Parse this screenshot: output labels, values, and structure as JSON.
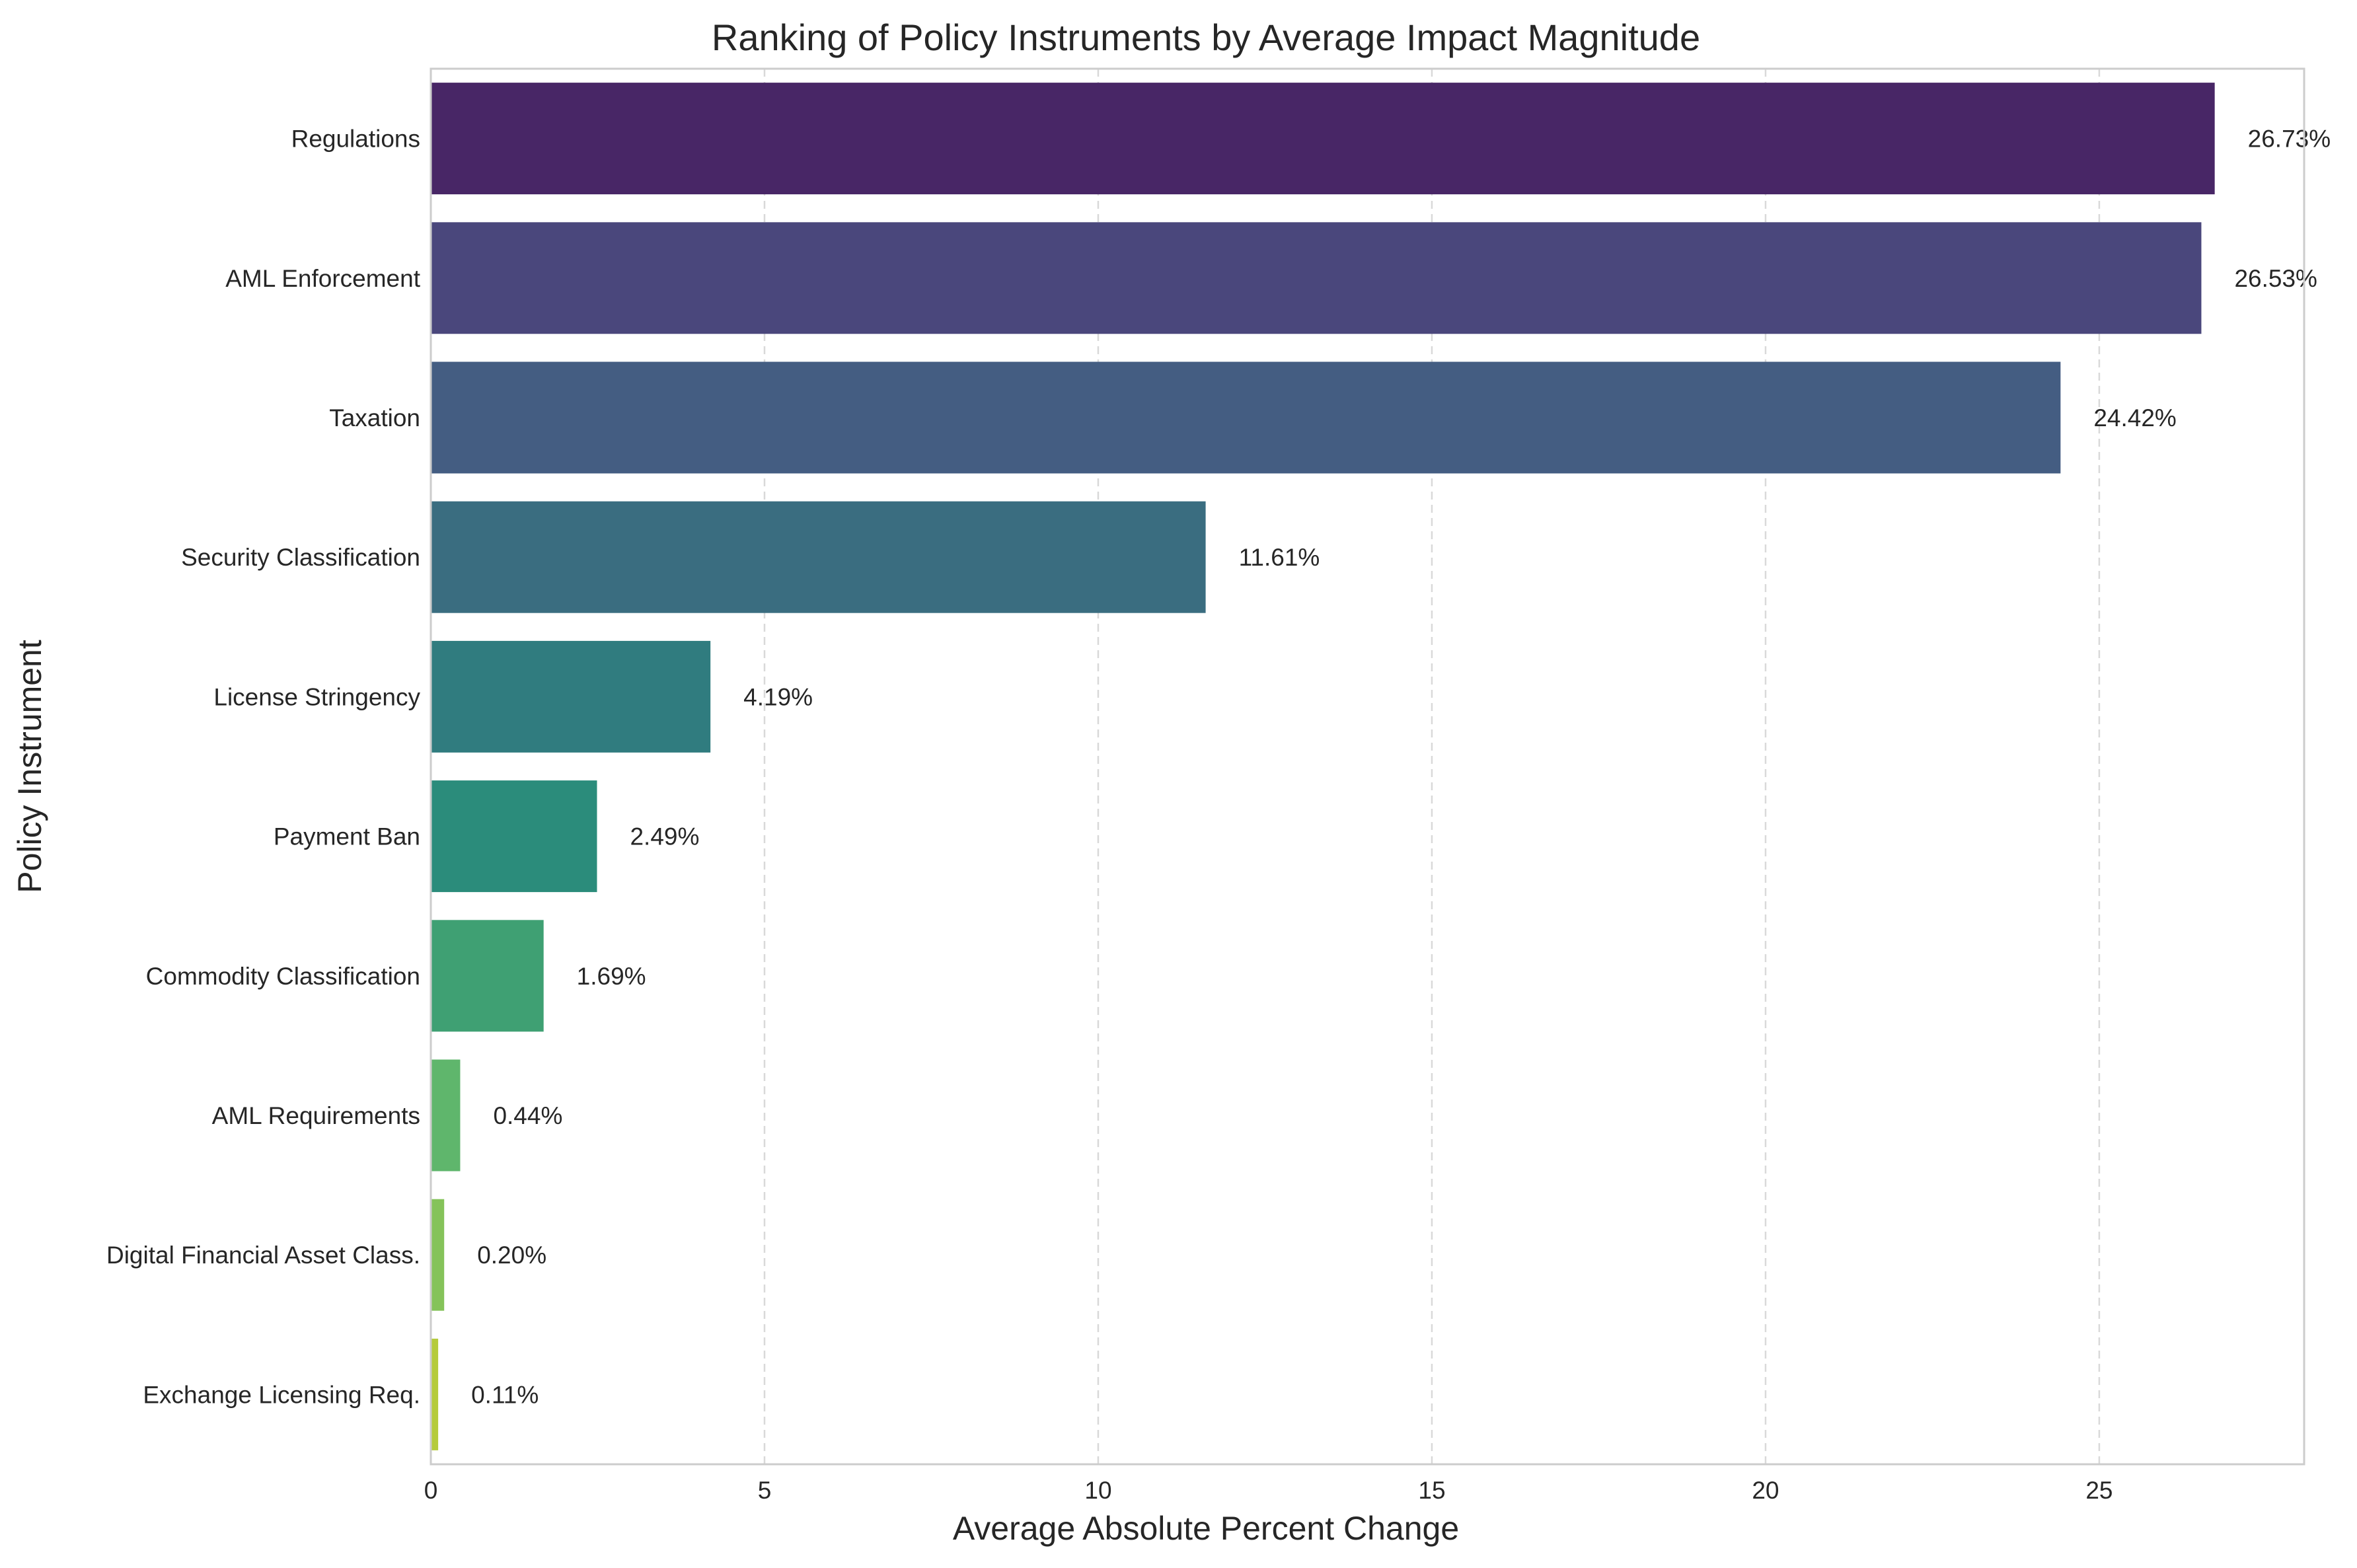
{
  "chart_data": {
    "type": "bar",
    "orientation": "horizontal",
    "title": "Ranking of Policy Instruments by Average Impact Magnitude",
    "xlabel": "Average Absolute Percent Change",
    "ylabel": "Policy Instrument",
    "xlim": [
      0,
      28.07
    ],
    "xticks": [
      0,
      5,
      10,
      15,
      20,
      25
    ],
    "grid": {
      "x": true,
      "y": false,
      "style": "dashed"
    },
    "categories": [
      "Regulations",
      "AML Enforcement",
      "Taxation",
      "Security Classification",
      "License Stringency",
      "Payment Ban",
      "Commodity Classification",
      "AML Requirements",
      "Digital Financial Asset Class.",
      "Exchange Licensing Req."
    ],
    "values": [
      26.73,
      26.53,
      24.42,
      11.61,
      4.19,
      2.49,
      1.69,
      0.44,
      0.2,
      0.11
    ],
    "value_labels": [
      "26.73%",
      "26.53%",
      "24.42%",
      "11.61%",
      "4.19%",
      "2.49%",
      "1.69%",
      "0.44%",
      "0.20%",
      "0.11%"
    ],
    "colors": [
      "#482666",
      "#4a477c",
      "#445d82",
      "#3a6d80",
      "#307c7f",
      "#2b8c7b",
      "#3fa073",
      "#5fb66c",
      "#85c35a",
      "#b5cb3c"
    ]
  }
}
